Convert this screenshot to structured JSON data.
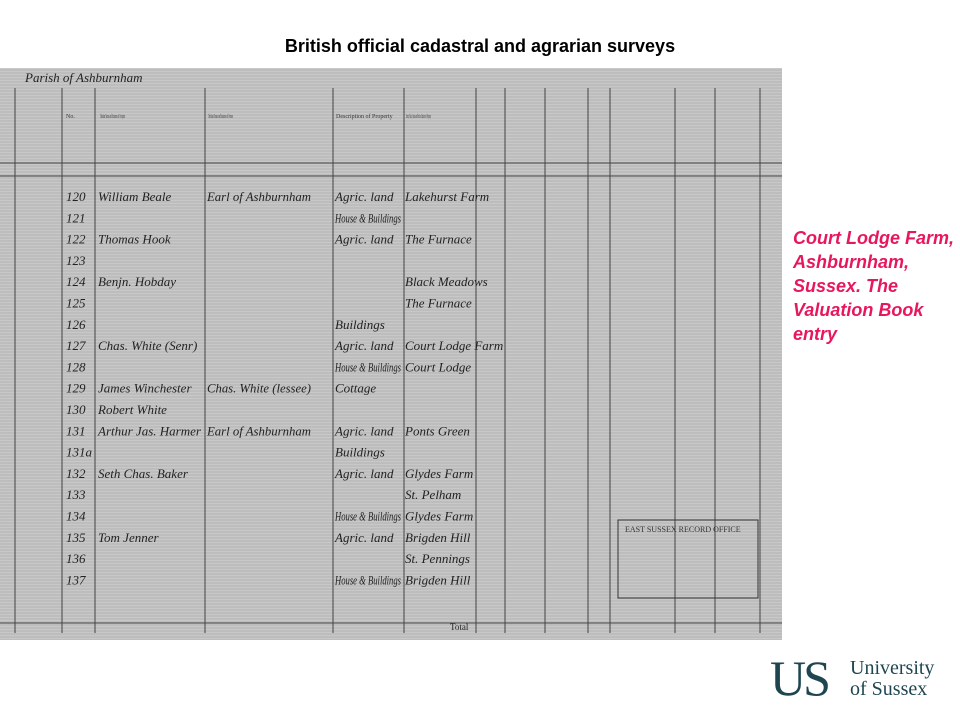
{
  "header": {
    "title": "British official cadastral and agrarian surveys"
  },
  "document": {
    "parish": "Parish of Ashburnham",
    "columns": [
      "No.",
      "Christian Names and Surnames of Occupiers",
      "Christian Names and Surnames of Owners",
      "Description of Property",
      "Street, Place, Name and Precise Situation of Property"
    ],
    "rows": [
      {
        "no": "120",
        "occupier": "William Beale",
        "owner": "Earl of Ashburnham",
        "description": "Agric. land",
        "place": "Lakehurst Farm"
      },
      {
        "no": "121",
        "description": "House & Buildings"
      },
      {
        "no": "122",
        "occupier": "Thomas Hook",
        "description": "Agric. land",
        "place": "The Furnace"
      },
      {
        "no": "123"
      },
      {
        "no": "124",
        "occupier": "Benjn. Hobday",
        "place": "Black Meadows"
      },
      {
        "no": "125",
        "place": "The Furnace"
      },
      {
        "no": "126",
        "description": "Buildings"
      },
      {
        "no": "127",
        "occupier": "Chas. White (Senr)",
        "description": "Agric. land",
        "place": "Court Lodge Farm"
      },
      {
        "no": "128",
        "description": "House & Buildings",
        "place": "Court Lodge"
      },
      {
        "no": "129",
        "occupier": "James Winchester",
        "owner": "Chas. White (lessee)",
        "description": "Cottage"
      },
      {
        "no": "130",
        "occupier": "Robert White"
      },
      {
        "no": "131",
        "occupier": "Arthur Jas. Harmer",
        "owner": "Earl of Ashburnham",
        "description": "Agric. land",
        "place": "Ponts Green"
      },
      {
        "no": "131a",
        "description": "Buildings"
      },
      {
        "no": "132",
        "occupier": "Seth Chas. Baker",
        "description": "Agric. land",
        "place": "Glydes Farm"
      },
      {
        "no": "133",
        "place": "St. Pelham"
      },
      {
        "no": "134",
        "description": "House & Buildings",
        "place": "Glydes Farm"
      },
      {
        "no": "135",
        "occupier": "Tom Jenner",
        "description": "Agric. land",
        "place": "Brigden Hill"
      },
      {
        "no": "136",
        "place": "St. Pennings"
      },
      {
        "no": "137",
        "description": "House & Buildings",
        "place": "Brigden Hill"
      }
    ],
    "total": "Total",
    "stamp": "EAST SUSSEX RECORD OFFICE"
  },
  "caption": "Court Lodge Farm, Ashburnham, Sussex. The Valuation Book entry",
  "logo": {
    "mark": "US",
    "line1": "University",
    "line2": "of Sussex"
  }
}
